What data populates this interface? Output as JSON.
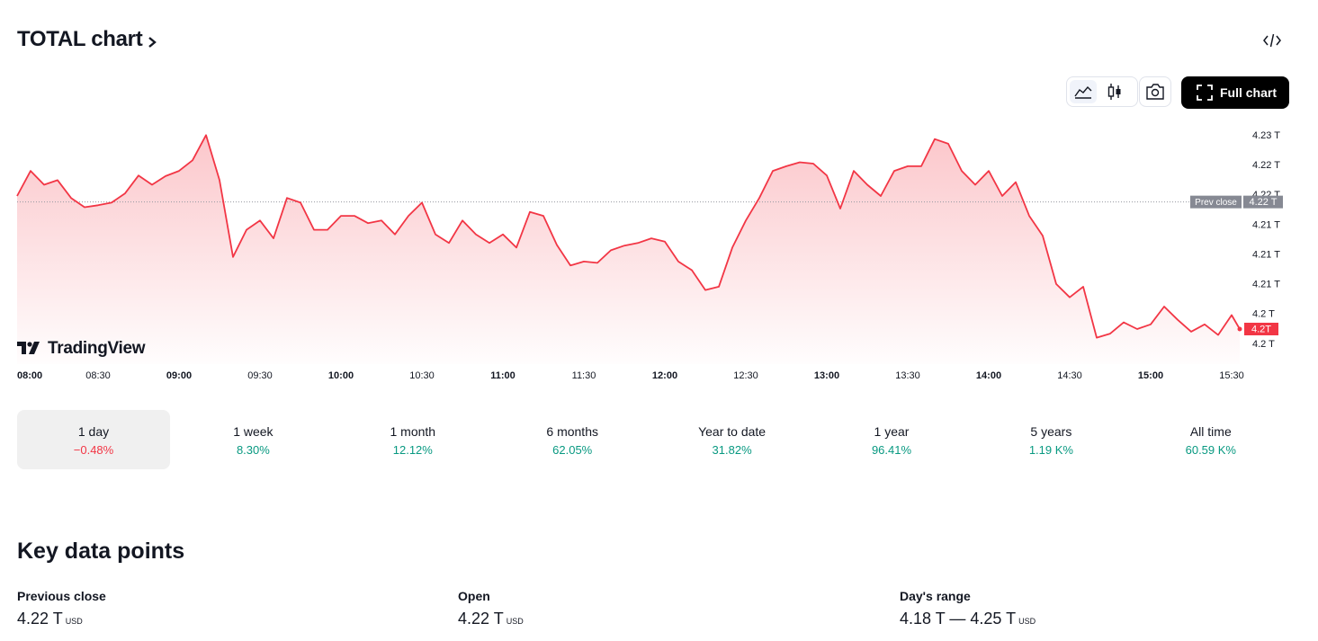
{
  "header": {
    "title": "TOTAL chart"
  },
  "toolbar": {
    "full_chart": "Full chart"
  },
  "brand": "TradingView",
  "chart_data": {
    "type": "line",
    "color": "#f23645",
    "x": [
      "08:00",
      "08:05",
      "08:10",
      "08:15",
      "08:20",
      "08:25",
      "08:30",
      "08:35",
      "08:40",
      "08:45",
      "08:50",
      "08:55",
      "09:00",
      "09:05",
      "09:10",
      "09:15",
      "09:20",
      "09:25",
      "09:30",
      "09:35",
      "09:40",
      "09:45",
      "09:50",
      "09:55",
      "10:00",
      "10:05",
      "10:10",
      "10:15",
      "10:20",
      "10:25",
      "10:30",
      "10:35",
      "10:40",
      "10:45",
      "10:50",
      "10:55",
      "11:00",
      "11:05",
      "11:10",
      "11:15",
      "11:20",
      "11:25",
      "11:30",
      "11:35",
      "11:40",
      "11:45",
      "11:50",
      "11:55",
      "12:00",
      "12:05",
      "12:10",
      "12:15",
      "12:20",
      "12:25",
      "12:30",
      "12:35",
      "12:40",
      "12:45",
      "12:50",
      "12:55",
      "13:00",
      "13:05",
      "13:10",
      "13:15",
      "13:20",
      "13:25",
      "13:30",
      "13:35",
      "13:40",
      "13:45",
      "13:50",
      "13:55",
      "14:00",
      "14:05",
      "14:10",
      "14:15",
      "14:20",
      "14:25",
      "14:30",
      "14:35",
      "14:40",
      "14:45",
      "14:50",
      "14:55",
      "15:00",
      "15:05",
      "15:10",
      "15:15",
      "15:20",
      "15:25",
      "15:30",
      "15:33"
    ],
    "values": [
      4.2189,
      4.2227,
      4.2206,
      4.2213,
      4.2186,
      4.2172,
      4.2175,
      4.2179,
      4.2193,
      4.222,
      4.2206,
      4.2219,
      4.2227,
      4.2243,
      4.2281,
      4.2213,
      4.2097,
      4.2138,
      4.2152,
      4.2125,
      4.2186,
      4.2179,
      4.2138,
      4.2138,
      4.2159,
      4.2159,
      4.2148,
      4.2152,
      4.2131,
      4.2159,
      4.2179,
      4.2131,
      4.2118,
      4.2152,
      4.2131,
      4.2118,
      4.2131,
      4.2111,
      4.2165,
      4.2159,
      4.2115,
      4.2084,
      4.209,
      4.2088,
      4.2107,
      4.2114,
      4.2118,
      4.2125,
      4.212,
      4.209,
      4.2077,
      4.2047,
      4.2052,
      4.2111,
      4.2152,
      4.2186,
      4.2227,
      4.2234,
      4.224,
      4.2238,
      4.222,
      4.217,
      4.2227,
      4.2206,
      4.2189,
      4.2227,
      4.2234,
      4.2234,
      4.2275,
      4.2268,
      4.2227,
      4.2206,
      4.2227,
      4.2189,
      4.221,
      4.2159,
      4.2129,
      4.2056,
      4.2036,
      4.2052,
      4.1975,
      4.1981,
      4.1998,
      4.1988,
      4.1995,
      4.2022,
      4.2002,
      4.1984,
      4.1995,
      4.1979,
      4.2009,
      4.1988
    ],
    "last_label": "4.2T",
    "xlim": [
      "08:00",
      "15:34"
    ],
    "xticks": [
      "08:00",
      "08:30",
      "09:00",
      "09:30",
      "10:00",
      "10:30",
      "11:00",
      "11:30",
      "12:00",
      "12:30",
      "13:00",
      "13:30",
      "14:00",
      "14:30",
      "15:00",
      "15:30"
    ],
    "ylim": [
      4.1935,
      4.2295
    ],
    "yticks": [
      {
        "value": 4.228,
        "label": "4.23 T"
      },
      {
        "value": 4.2235,
        "label": "4.22 T"
      },
      {
        "value": 4.219,
        "label": "4.22 T"
      },
      {
        "value": 4.2145,
        "label": "4.21 T"
      },
      {
        "value": 4.21,
        "label": "4.21 T"
      },
      {
        "value": 4.2055,
        "label": "4.21 T"
      },
      {
        "value": 4.201,
        "label": "4.2 T"
      },
      {
        "value": 4.1965,
        "label": "4.2 T"
      }
    ],
    "grid": false,
    "prev_close": {
      "name": "Prev close",
      "value": 4.218,
      "label": "4.22 T"
    }
  },
  "periods": [
    {
      "label": "1 day",
      "change": "−0.48%",
      "color": "#f23645",
      "active": true
    },
    {
      "label": "1 week",
      "change": "8.30%",
      "color": "#089981"
    },
    {
      "label": "1 month",
      "change": "12.12%",
      "color": "#089981"
    },
    {
      "label": "6 months",
      "change": "62.05%",
      "color": "#089981"
    },
    {
      "label": "Year to date",
      "change": "31.82%",
      "color": "#089981"
    },
    {
      "label": "1 year",
      "change": "96.41%",
      "color": "#089981"
    },
    {
      "label": "5 years",
      "change": "1.19 K%",
      "color": "#089981"
    },
    {
      "label": "All time",
      "change": "60.59 K%",
      "color": "#089981"
    }
  ],
  "key_data": {
    "title": "Key data points",
    "items": [
      {
        "label": "Previous close",
        "value": "4.22 T",
        "unit": "USD"
      },
      {
        "label": "Open",
        "value": "4.22 T",
        "unit": "USD"
      },
      {
        "label": "Day's range",
        "value": "4.18 T — 4.25 T",
        "unit": "USD"
      }
    ]
  }
}
